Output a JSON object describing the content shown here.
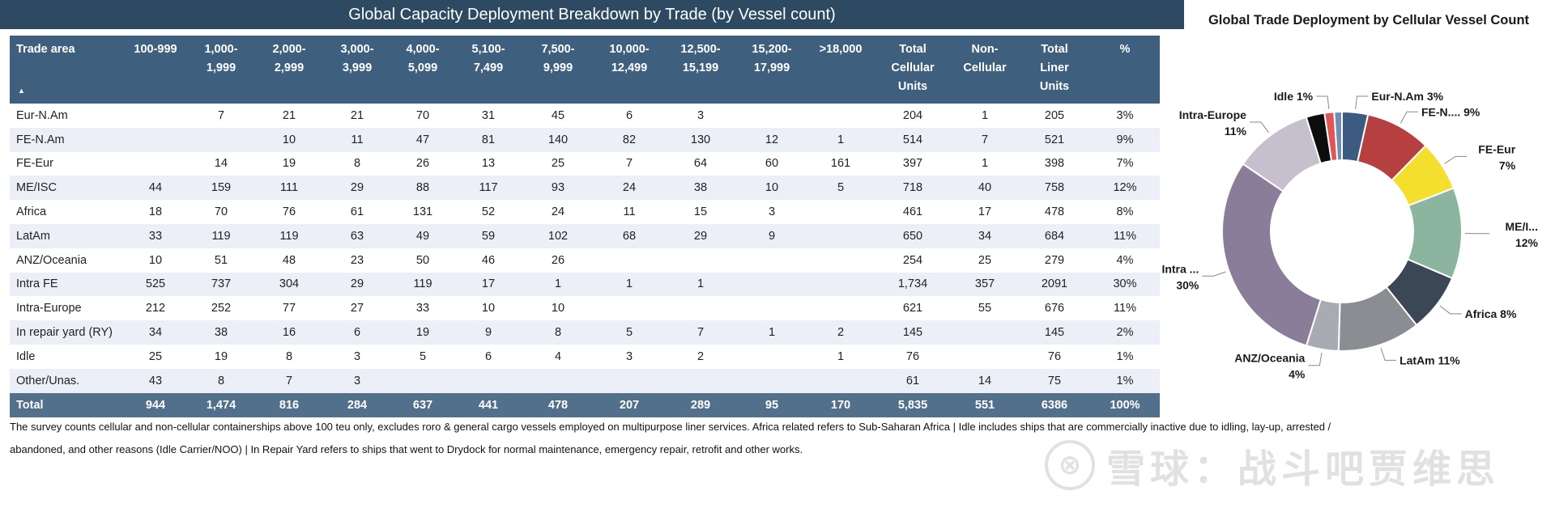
{
  "table_title": "Global Capacity Deployment Breakdown by Trade (by Vessel count)",
  "columns": [
    [
      "Trade area"
    ],
    [
      "100-999"
    ],
    [
      "1,000-",
      "1,999"
    ],
    [
      "2,000-",
      "2,999"
    ],
    [
      "3,000-",
      "3,999"
    ],
    [
      "4,000-",
      "5,099"
    ],
    [
      "5,100-",
      "7,499"
    ],
    [
      "7,500-",
      "9,999"
    ],
    [
      "10,000-",
      "12,499"
    ],
    [
      "12,500-",
      "15,199"
    ],
    [
      "15,200-",
      "17,999"
    ],
    [
      ">18,000"
    ],
    [
      "Total",
      "Cellular",
      "Units"
    ],
    [
      "Non-",
      "Cellular"
    ],
    [
      "Total",
      "Liner",
      "Units"
    ],
    [
      "%"
    ]
  ],
  "sort_indicator": "▲",
  "rows": [
    [
      "Eur-N.Am",
      "",
      "7",
      "21",
      "21",
      "70",
      "31",
      "45",
      "6",
      "3",
      "",
      "",
      "204",
      "1",
      "205",
      "3%"
    ],
    [
      "FE-N.Am",
      "",
      "",
      "10",
      "11",
      "47",
      "81",
      "140",
      "82",
      "130",
      "12",
      "1",
      "514",
      "7",
      "521",
      "9%"
    ],
    [
      "FE-Eur",
      "",
      "14",
      "19",
      "8",
      "26",
      "13",
      "25",
      "7",
      "64",
      "60",
      "161",
      "397",
      "1",
      "398",
      "7%"
    ],
    [
      "ME/ISC",
      "44",
      "159",
      "111",
      "29",
      "88",
      "117",
      "93",
      "24",
      "38",
      "10",
      "5",
      "718",
      "40",
      "758",
      "12%"
    ],
    [
      "Africa",
      "18",
      "70",
      "76",
      "61",
      "131",
      "52",
      "24",
      "11",
      "15",
      "3",
      "",
      "461",
      "17",
      "478",
      "8%"
    ],
    [
      "LatAm",
      "33",
      "119",
      "119",
      "63",
      "49",
      "59",
      "102",
      "68",
      "29",
      "9",
      "",
      "650",
      "34",
      "684",
      "11%"
    ],
    [
      "ANZ/Oceania",
      "10",
      "51",
      "48",
      "23",
      "50",
      "46",
      "26",
      "",
      "",
      "",
      "",
      "254",
      "25",
      "279",
      "4%"
    ],
    [
      "Intra FE",
      "525",
      "737",
      "304",
      "29",
      "119",
      "17",
      "1",
      "1",
      "1",
      "",
      "",
      "1,734",
      "357",
      "2091",
      "30%"
    ],
    [
      "Intra-Europe",
      "212",
      "252",
      "77",
      "27",
      "33",
      "10",
      "10",
      "",
      "",
      "",
      "",
      "621",
      "55",
      "676",
      "11%"
    ],
    [
      "In repair yard (RY)",
      "34",
      "38",
      "16",
      "6",
      "19",
      "9",
      "8",
      "5",
      "7",
      "1",
      "2",
      "145",
      "",
      "145",
      "2%"
    ],
    [
      "Idle",
      "25",
      "19",
      "8",
      "3",
      "5",
      "6",
      "4",
      "3",
      "2",
      "",
      "1",
      "76",
      "",
      "76",
      "1%"
    ],
    [
      "Other/Unas.",
      "43",
      "8",
      "7",
      "3",
      "",
      "",
      "",
      "",
      "",
      "",
      "",
      "61",
      "14",
      "75",
      "1%"
    ]
  ],
  "total_row": [
    "Total",
    "944",
    "1,474",
    "816",
    "284",
    "637",
    "441",
    "478",
    "207",
    "289",
    "95",
    "170",
    "5,835",
    "551",
    "6386",
    "100%"
  ],
  "notes": [
    "The survey counts cellular and non-cellular containerships above 100 teu only, excludes roro & general cargo vessels employed on multipurpose liner services. Africa related refers to Sub-Saharan Africa | Idle includes ships that are commercially inactive due to idling, lay-up, arrested /",
    "abandoned, and other reasons (Idle Carrier/NOO) | In Repair Yard refers to ships that went to Drydock for normal maintenance, emergency repair, retrofit and other works."
  ],
  "watermark": {
    "logo_text": "⊗",
    "text": "雪球：战斗吧贾维思"
  },
  "chart_data": {
    "type": "pie",
    "title": "Global Trade Deployment by Cellular Vessel Count",
    "donut": true,
    "slices": [
      {
        "name": "Eur-N.Am",
        "value": 204,
        "label": "Eur-N.Am 3%",
        "color": "#3d5a80"
      },
      {
        "name": "FE-N.Am",
        "value": 514,
        "label": "FE-N.... 9%",
        "color": "#b5403f"
      },
      {
        "name": "FE-Eur",
        "value": 397,
        "label": "FE-Eur\n7%",
        "color": "#f5df2e"
      },
      {
        "name": "ME/ISC",
        "value": 718,
        "label": "ME/I...\n12%",
        "color": "#8cb5a0"
      },
      {
        "name": "Africa",
        "value": 461,
        "label": "Africa 8%",
        "color": "#3b4754"
      },
      {
        "name": "LatAm",
        "value": 650,
        "label": "LatAm 11%",
        "color": "#8a8d91"
      },
      {
        "name": "ANZ/Oceania",
        "value": 254,
        "label": "ANZ/Oceania\n4%",
        "color": "#a8acb2"
      },
      {
        "name": "Intra FE",
        "value": 1734,
        "label": "Intra ...\n30%",
        "color": "#8a7d9a"
      },
      {
        "name": "Intra-Europe",
        "value": 621,
        "label": "Intra-Europe\n11%",
        "color": "#c6bfcd"
      },
      {
        "name": "In repair yard (RY)",
        "value": 145,
        "label": "",
        "color": "#0d0d0d"
      },
      {
        "name": "Idle",
        "value": 76,
        "label": "Idle 1%",
        "color": "#e05555"
      },
      {
        "name": "Other/Unas.",
        "value": 61,
        "label": "",
        "color": "#6e8fb0"
      }
    ]
  }
}
